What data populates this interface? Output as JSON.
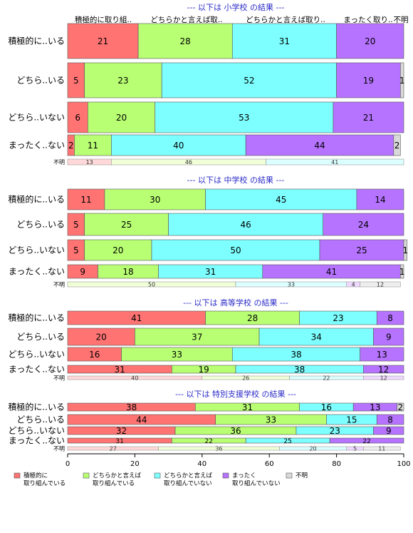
{
  "chart_data": [
    {
      "type": "bar",
      "orientation": "horizontal-stacked-percent",
      "title": "--- 以下は 小学校 の結果 ---",
      "column_labels": [
        "積極的に取り組..",
        "どちらかと言えば取..",
        "どちらかと言えば取り..",
        "まったく取り..",
        "不明"
      ],
      "categories": [
        "積極的に..いる",
        "どちら..いる",
        "どちら..いない",
        "まったく..ない"
      ],
      "series": [
        {
          "name": "積極的に取り組んでいる",
          "values": [
            21,
            5,
            6,
            2
          ]
        },
        {
          "name": "どちらかと言えば取り組んでいる",
          "values": [
            28,
            23,
            20,
            11
          ]
        },
        {
          "name": "どちらかと言えば取り組んでいない",
          "values": [
            31,
            52,
            53,
            40
          ]
        },
        {
          "name": "まったく取り組んでいない",
          "values": [
            20,
            19,
            21,
            44
          ]
        },
        {
          "name": "不明",
          "values": [
            0,
            1,
            0,
            2
          ]
        }
      ],
      "unknown_label": "不明",
      "unknown_row": [
        13,
        46,
        41,
        0
      ]
    },
    {
      "type": "bar",
      "orientation": "horizontal-stacked-percent",
      "title": "--- 以下は 中学校 の結果 ---",
      "categories": [
        "積極的に..いる",
        "どちら..いる",
        "どちら..いない",
        "まったく..ない"
      ],
      "series": [
        {
          "name": "積極的に取り組んでいる",
          "values": [
            11,
            5,
            5,
            9
          ]
        },
        {
          "name": "どちらかと言えば取り組んでいる",
          "values": [
            30,
            25,
            20,
            18
          ]
        },
        {
          "name": "どちらかと言えば取り組んでいない",
          "values": [
            45,
            46,
            50,
            31
          ]
        },
        {
          "name": "まったく取り組んでいない",
          "values": [
            14,
            24,
            25,
            41
          ]
        },
        {
          "name": "不明",
          "values": [
            0,
            0,
            1,
            1
          ]
        }
      ],
      "unknown_label": "不明",
      "unknown_row": [
        0,
        50,
        33,
        4,
        12
      ]
    },
    {
      "type": "bar",
      "orientation": "horizontal-stacked-percent",
      "title": "--- 以下は 高等学校 の結果 ---",
      "categories": [
        "積極的に..いる",
        "どちら..いる",
        "どちら..いない",
        "まったく..ない"
      ],
      "series": [
        {
          "name": "積極的に取り組んでいる",
          "values": [
            41,
            20,
            16,
            31
          ]
        },
        {
          "name": "どちらかと言えば取り組んでいる",
          "values": [
            28,
            37,
            33,
            19
          ]
        },
        {
          "name": "どちらかと言えば取り組んでいない",
          "values": [
            23,
            34,
            38,
            38
          ]
        },
        {
          "name": "まったく取り組んでいない",
          "values": [
            8,
            9,
            13,
            12
          ]
        },
        {
          "name": "不明",
          "values": [
            0,
            0,
            0,
            0
          ]
        }
      ],
      "unknown_label": "不明",
      "unknown_row": [
        40,
        26,
        22,
        12,
        0
      ]
    },
    {
      "type": "bar",
      "orientation": "horizontal-stacked-percent",
      "title": "--- 以下は 特別支援学校 の結果 ---",
      "categories": [
        "積極的に..いる",
        "どちら..いる",
        "どちら..いない",
        "まったく..ない"
      ],
      "series": [
        {
          "name": "積極的に取り組んでいる",
          "values": [
            38,
            44,
            32,
            31
          ]
        },
        {
          "name": "どちらかと言えば取り組んでいる",
          "values": [
            31,
            33,
            36,
            22
          ]
        },
        {
          "name": "どちらかと言えば取り組んでいない",
          "values": [
            16,
            15,
            23,
            25
          ]
        },
        {
          "name": "まったく取り組んでいない",
          "values": [
            13,
            8,
            9,
            22
          ]
        },
        {
          "name": "不明",
          "values": [
            2,
            0,
            0,
            0
          ]
        }
      ],
      "unknown_label": "不明",
      "unknown_row": [
        27,
        36,
        20,
        5,
        11
      ]
    }
  ],
  "x_axis": {
    "min": 0,
    "max": 100,
    "ticks": [
      "0",
      "20",
      "40",
      "60",
      "80",
      "100"
    ]
  },
  "legend": {
    "placement": "bottom",
    "items": [
      {
        "label": "積極的に\n取り組んでいる",
        "color": "#ff7373"
      },
      {
        "label": "どちらかと言えば\n取り組んでいる",
        "color": "#b8ff73"
      },
      {
        "label": "どちらかと言えば\n取り組んでいない",
        "color": "#7dffff"
      },
      {
        "label": "まったく\n取り組んでいない",
        "color": "#b673ff"
      },
      {
        "label": "不明",
        "color": "#d9d9d9"
      }
    ]
  },
  "colors": {
    "series": [
      "#ff7373",
      "#b8ff73",
      "#7dffff",
      "#b673ff",
      "#d9d9d9"
    ],
    "unknown_row": [
      "#ffd9d9",
      "#f1ffd9",
      "#dcffff",
      "#f0d9ff",
      "#eeeeee"
    ],
    "title": "#2a2ac8"
  }
}
